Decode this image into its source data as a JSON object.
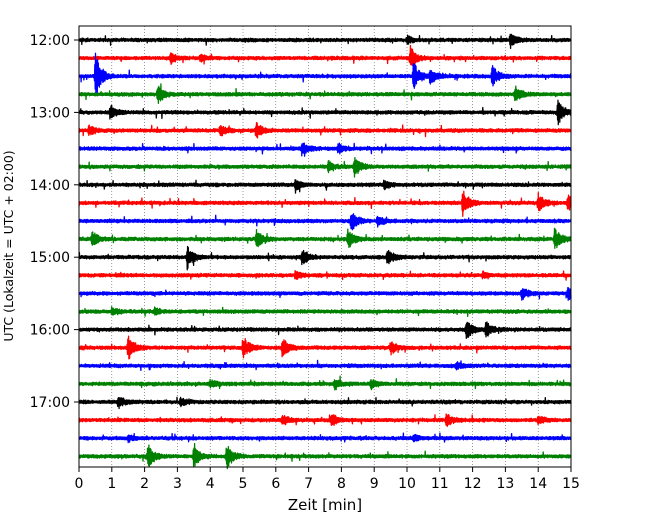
{
  "chart_data": {
    "type": "line",
    "subtype": "helicorder",
    "xlabel": "Zeit  [min]",
    "ylabel": "UTC (Lokalzeit = UTC + 02:00)",
    "xlim": [
      0,
      15
    ],
    "x_ticks": [
      0,
      1,
      2,
      3,
      4,
      5,
      6,
      7,
      8,
      9,
      10,
      11,
      12,
      13,
      14,
      15
    ],
    "x_tick_labels": [
      "0",
      "1",
      "2",
      "3",
      "4",
      "5",
      "6",
      "7",
      "8",
      "9",
      "10",
      "11",
      "12",
      "13",
      "14",
      "15"
    ],
    "vertical_gridlines": "dotted",
    "y_tick_labels": [
      "12:00",
      "13:00",
      "14:00",
      "15:00",
      "16:00",
      "17:00"
    ],
    "trace_colors": [
      "#000000",
      "#ff0000",
      "#0000ff",
      "#008000"
    ],
    "traces": [
      {
        "start": "12:00",
        "color": "#000000",
        "events": [
          {
            "t": 10.0,
            "amp": 0.4
          },
          {
            "t": 13.15,
            "amp": 0.7
          }
        ]
      },
      {
        "start": "12:15",
        "color": "#ff0000",
        "events": [
          {
            "t": 2.8,
            "amp": 0.5
          },
          {
            "t": 3.7,
            "amp": 0.3
          },
          {
            "t": 10.1,
            "amp": 1.1
          }
        ]
      },
      {
        "start": "12:30",
        "color": "#0000ff",
        "events": [
          {
            "t": 0.5,
            "amp": 2.2
          },
          {
            "t": 10.2,
            "amp": 1.4
          },
          {
            "t": 10.7,
            "amp": 0.8
          },
          {
            "t": 12.6,
            "amp": 1.0
          }
        ]
      },
      {
        "start": "12:45",
        "color": "#008000",
        "events": [
          {
            "t": 2.4,
            "amp": 1.0
          },
          {
            "t": 13.3,
            "amp": 0.8
          }
        ]
      },
      {
        "start": "13:00",
        "color": "#000000",
        "events": [
          {
            "t": 0.95,
            "amp": 0.8
          },
          {
            "t": 14.6,
            "amp": 1.2
          }
        ]
      },
      {
        "start": "13:15",
        "color": "#ff0000",
        "events": [
          {
            "t": 0.3,
            "amp": 0.5
          },
          {
            "t": 4.3,
            "amp": 0.6
          },
          {
            "t": 5.4,
            "amp": 0.8
          }
        ]
      },
      {
        "start": "13:30",
        "color": "#0000ff",
        "events": [
          {
            "t": 6.8,
            "amp": 0.7
          },
          {
            "t": 7.9,
            "amp": 0.5
          }
        ]
      },
      {
        "start": "13:45",
        "color": "#008000",
        "events": [
          {
            "t": 7.6,
            "amp": 0.6
          },
          {
            "t": 8.4,
            "amp": 1.0
          }
        ]
      },
      {
        "start": "14:00",
        "color": "#000000",
        "events": [
          {
            "t": 6.6,
            "amp": 0.5
          },
          {
            "t": 9.3,
            "amp": 0.4
          }
        ]
      },
      {
        "start": "14:15",
        "color": "#ff0000",
        "events": [
          {
            "t": 11.7,
            "amp": 1.3
          },
          {
            "t": 14.0,
            "amp": 0.9
          },
          {
            "t": 14.9,
            "amp": 0.8
          }
        ]
      },
      {
        "start": "14:30",
        "color": "#0000ff",
        "events": [
          {
            "t": 8.3,
            "amp": 1.0
          },
          {
            "t": 9.1,
            "amp": 0.5
          }
        ]
      },
      {
        "start": "14:45",
        "color": "#008000",
        "events": [
          {
            "t": 0.4,
            "amp": 0.7
          },
          {
            "t": 5.4,
            "amp": 0.9
          },
          {
            "t": 8.2,
            "amp": 1.0
          },
          {
            "t": 14.5,
            "amp": 1.1
          }
        ]
      },
      {
        "start": "15:00",
        "color": "#000000",
        "events": [
          {
            "t": 3.3,
            "amp": 1.2
          },
          {
            "t": 6.8,
            "amp": 0.8
          },
          {
            "t": 9.4,
            "amp": 0.7
          }
        ]
      },
      {
        "start": "15:15",
        "color": "#ff0000",
        "events": [
          {
            "t": 6.6,
            "amp": 0.4
          },
          {
            "t": 12.3,
            "amp": 0.3
          }
        ]
      },
      {
        "start": "15:30",
        "color": "#0000ff",
        "events": [
          {
            "t": 13.5,
            "amp": 0.6
          },
          {
            "t": 14.9,
            "amp": 0.7
          }
        ]
      },
      {
        "start": "15:45",
        "color": "#008000",
        "events": [
          {
            "t": 1.0,
            "amp": 0.4
          },
          {
            "t": 2.3,
            "amp": 0.3
          }
        ]
      },
      {
        "start": "16:00",
        "color": "#000000",
        "events": [
          {
            "t": 11.8,
            "amp": 0.9
          },
          {
            "t": 12.4,
            "amp": 0.8
          }
        ]
      },
      {
        "start": "16:15",
        "color": "#ff0000",
        "events": [
          {
            "t": 1.5,
            "amp": 1.2
          },
          {
            "t": 5.0,
            "amp": 1.2
          },
          {
            "t": 6.2,
            "amp": 0.9
          },
          {
            "t": 9.5,
            "amp": 0.6
          }
        ]
      },
      {
        "start": "16:30",
        "color": "#0000ff",
        "events": [
          {
            "t": 11.5,
            "amp": 0.3
          }
        ]
      },
      {
        "start": "16:45",
        "color": "#008000",
        "events": [
          {
            "t": 4.0,
            "amp": 0.4
          },
          {
            "t": 7.8,
            "amp": 0.5
          },
          {
            "t": 8.9,
            "amp": 0.4
          }
        ]
      },
      {
        "start": "17:00",
        "color": "#000000",
        "events": [
          {
            "t": 1.2,
            "amp": 0.6
          },
          {
            "t": 3.1,
            "amp": 0.4
          }
        ]
      },
      {
        "start": "17:15",
        "color": "#ff0000",
        "events": [
          {
            "t": 6.2,
            "amp": 0.5
          },
          {
            "t": 7.7,
            "amp": 0.6
          },
          {
            "t": 11.2,
            "amp": 0.6
          },
          {
            "t": 14.0,
            "amp": 0.4
          }
        ]
      },
      {
        "start": "17:30",
        "color": "#0000ff",
        "events": [
          {
            "t": 1.5,
            "amp": 0.3
          },
          {
            "t": 10.2,
            "amp": 0.3
          }
        ]
      },
      {
        "start": "17:45",
        "color": "#008000",
        "events": [
          {
            "t": 2.1,
            "amp": 1.2
          },
          {
            "t": 3.5,
            "amp": 1.0
          },
          {
            "t": 4.5,
            "amp": 1.3
          }
        ]
      }
    ]
  }
}
